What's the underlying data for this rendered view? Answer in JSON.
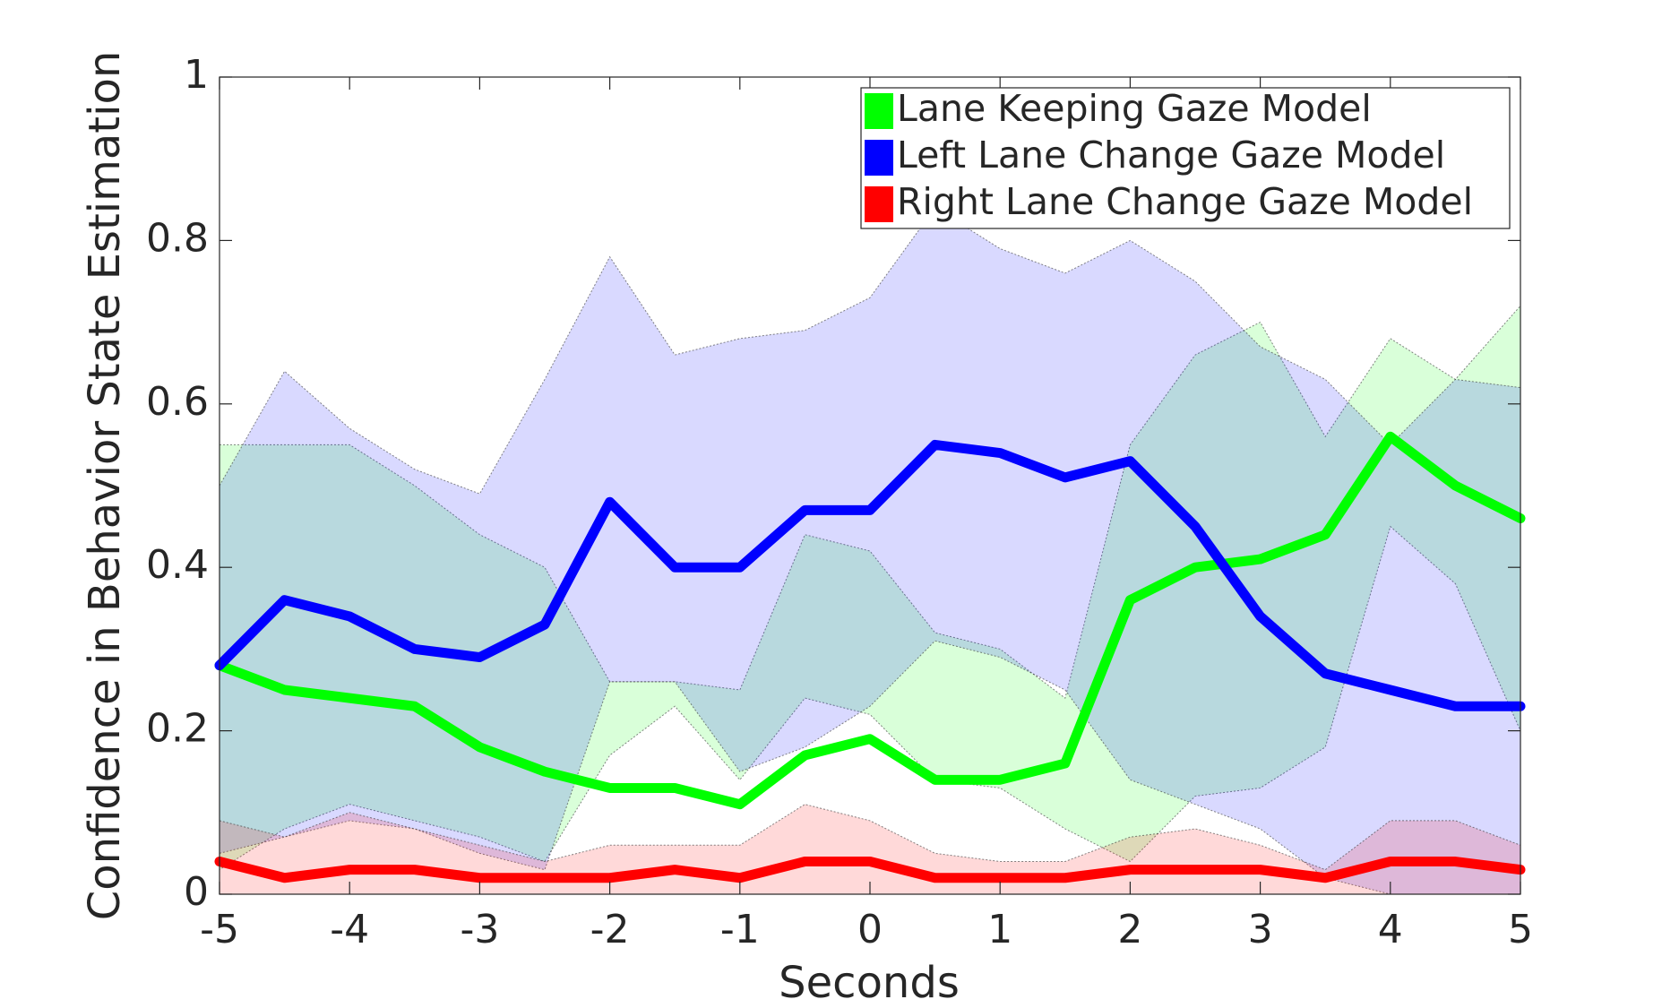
{
  "chart_data": {
    "type": "line",
    "xlabel": "Seconds",
    "ylabel": "Confidence in Behavior State Estimation",
    "x": [
      -5,
      -4.5,
      -4,
      -3.5,
      -3,
      -2.5,
      -2,
      -1.5,
      -1,
      -0.5,
      0,
      0.5,
      1,
      1.5,
      2,
      2.5,
      3,
      3.5,
      4,
      4.5,
      5
    ],
    "xlim": [
      -5,
      5
    ],
    "xticks": [
      -5,
      -4,
      -3,
      -2,
      -1,
      0,
      1,
      2,
      3,
      4,
      5
    ],
    "ylim": [
      0,
      1
    ],
    "yticks": [
      0,
      0.2,
      0.4,
      0.6,
      0.8,
      1
    ],
    "legend": "upper right",
    "series": [
      {
        "name": "Lane Keeping Gaze Model",
        "color": "#00ff00",
        "values": [
          0.28,
          0.25,
          0.24,
          0.23,
          0.18,
          0.15,
          0.13,
          0.13,
          0.11,
          0.17,
          0.19,
          0.14,
          0.14,
          0.16,
          0.36,
          0.4,
          0.41,
          0.44,
          0.56,
          0.5,
          0.46
        ],
        "upper": [
          0.55,
          0.55,
          0.55,
          0.5,
          0.44,
          0.4,
          0.26,
          0.26,
          0.25,
          0.44,
          0.42,
          0.32,
          0.3,
          0.24,
          0.55,
          0.66,
          0.7,
          0.56,
          0.68,
          0.63,
          0.72
        ],
        "lower": [
          0.03,
          0.08,
          0.11,
          0.09,
          0.07,
          0.04,
          0.17,
          0.23,
          0.14,
          0.24,
          0.22,
          0.14,
          0.13,
          0.08,
          0.04,
          0.12,
          0.13,
          0.18,
          0.45,
          0.38,
          0.2
        ]
      },
      {
        "name": "Left Lane Change Gaze Model",
        "color": "#0000ff",
        "values": [
          0.28,
          0.36,
          0.34,
          0.3,
          0.29,
          0.33,
          0.48,
          0.4,
          0.4,
          0.47,
          0.47,
          0.55,
          0.54,
          0.51,
          0.53,
          0.45,
          0.34,
          0.27,
          0.25,
          0.23,
          0.23
        ],
        "upper": [
          0.5,
          0.64,
          0.57,
          0.52,
          0.49,
          0.63,
          0.78,
          0.66,
          0.68,
          0.69,
          0.73,
          0.84,
          0.79,
          0.76,
          0.8,
          0.75,
          0.67,
          0.63,
          0.55,
          0.63,
          0.62
        ],
        "lower": [
          0.05,
          0.07,
          0.09,
          0.08,
          0.05,
          0.03,
          0.26,
          0.26,
          0.15,
          0.18,
          0.23,
          0.31,
          0.29,
          0.25,
          0.14,
          0.11,
          0.08,
          0.02,
          0,
          0,
          0
        ]
      },
      {
        "name": "Right Lane Change Gaze Model",
        "color": "#ff0000",
        "values": [
          0.04,
          0.02,
          0.03,
          0.03,
          0.02,
          0.02,
          0.02,
          0.03,
          0.02,
          0.04,
          0.04,
          0.02,
          0.02,
          0.02,
          0.03,
          0.03,
          0.03,
          0.02,
          0.04,
          0.04,
          0.03
        ],
        "upper": [
          0.09,
          0.07,
          0.1,
          0.08,
          0.06,
          0.04,
          0.06,
          0.06,
          0.06,
          0.11,
          0.09,
          0.05,
          0.04,
          0.04,
          0.07,
          0.08,
          0.06,
          0.03,
          0.09,
          0.09,
          0.06
        ],
        "lower": [
          0,
          0,
          0,
          0,
          0,
          0,
          0,
          0,
          0,
          0,
          0,
          0,
          0,
          0,
          0,
          0,
          0,
          0,
          0,
          0,
          0
        ]
      }
    ]
  }
}
